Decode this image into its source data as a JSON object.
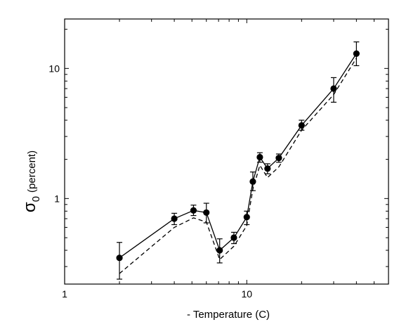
{
  "chart_data": {
    "type": "scatter",
    "x_scale": "log",
    "y_scale": "log",
    "xlim": [
      1,
      60
    ],
    "ylim": [
      0.22,
      24
    ],
    "xlabel": "- Temperature (C)",
    "ylabel_symbol": "σ",
    "ylabel_subscript": "0",
    "ylabel_text": "(percent)",
    "x_ticks": [
      {
        "value": 1,
        "label": "1"
      },
      {
        "value": 10,
        "label": "10"
      }
    ],
    "y_ticks": [
      {
        "value": 1,
        "label": "1"
      },
      {
        "value": 10,
        "label": "10"
      }
    ],
    "grid": false,
    "series": [
      {
        "style": "solid-markers",
        "color": "#000000",
        "points": [
          {
            "x": 2.0,
            "y": 0.35,
            "err_low": 0.24,
            "err_high": 0.46
          },
          {
            "x": 4.0,
            "y": 0.7,
            "err_low": 0.63,
            "err_high": 0.77
          },
          {
            "x": 5.1,
            "y": 0.81,
            "err_low": 0.74,
            "err_high": 0.89
          },
          {
            "x": 6.0,
            "y": 0.78,
            "err_low": 0.65,
            "err_high": 0.92
          },
          {
            "x": 7.1,
            "y": 0.4,
            "err_low": 0.32,
            "err_high": 0.49
          },
          {
            "x": 8.5,
            "y": 0.5,
            "err_low": 0.45,
            "err_high": 0.55
          },
          {
            "x": 10.0,
            "y": 0.72,
            "err_low": 0.63,
            "err_high": 0.8
          },
          {
            "x": 10.8,
            "y": 1.35,
            "err_low": 1.15,
            "err_high": 1.6
          },
          {
            "x": 11.8,
            "y": 2.08,
            "err_low": 1.9,
            "err_high": 2.25
          },
          {
            "x": 13.0,
            "y": 1.7,
            "err_low": 1.55,
            "err_high": 1.85
          },
          {
            "x": 15.0,
            "y": 2.05,
            "err_low": 1.9,
            "err_high": 2.2
          },
          {
            "x": 20.0,
            "y": 3.65,
            "err_low": 3.35,
            "err_high": 4.0
          },
          {
            "x": 30.0,
            "y": 7.0,
            "err_low": 5.5,
            "err_high": 8.5
          },
          {
            "x": 40.0,
            "y": 13.0,
            "err_low": 10.5,
            "err_high": 16.0
          }
        ]
      },
      {
        "style": "dashed",
        "color": "#000000",
        "points": [
          {
            "x": 2.0,
            "y": 0.265
          },
          {
            "x": 4.0,
            "y": 0.6
          },
          {
            "x": 5.1,
            "y": 0.71
          },
          {
            "x": 6.0,
            "y": 0.66
          },
          {
            "x": 7.1,
            "y": 0.34
          },
          {
            "x": 8.5,
            "y": 0.43
          },
          {
            "x": 10.0,
            "y": 0.62
          },
          {
            "x": 10.8,
            "y": 1.18
          },
          {
            "x": 11.8,
            "y": 1.8
          },
          {
            "x": 13.0,
            "y": 1.45
          },
          {
            "x": 15.0,
            "y": 1.75
          },
          {
            "x": 20.0,
            "y": 3.35
          },
          {
            "x": 30.0,
            "y": 6.3
          },
          {
            "x": 40.0,
            "y": 12.0
          }
        ]
      }
    ]
  }
}
